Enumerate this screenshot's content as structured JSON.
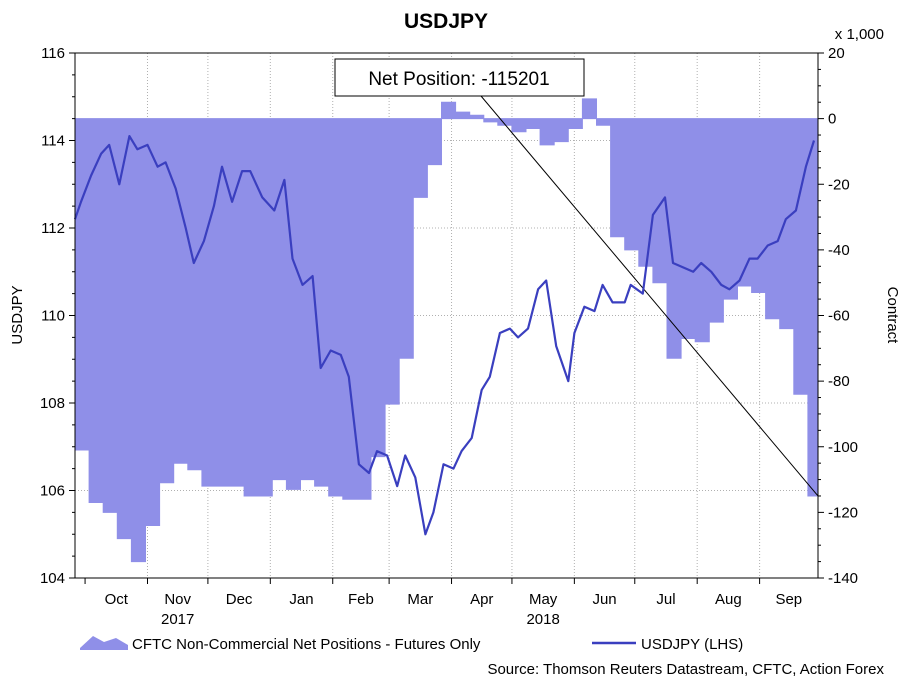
{
  "chart_data": {
    "type": "line+area",
    "title": "USDJPY",
    "left_axis": {
      "label": "USDJPY",
      "ylim": [
        104,
        116
      ],
      "ticks": [
        "104",
        "106",
        "108",
        "110",
        "112",
        "114",
        "116"
      ]
    },
    "right_axis": {
      "label": "Contract",
      "multiplier_label": "x 1,000",
      "ylim": [
        -140,
        20
      ],
      "ticks": [
        "20",
        "0",
        "-20",
        "-40",
        "-60",
        "-80",
        "-100",
        "-120",
        "-140"
      ]
    },
    "x_axis": {
      "months": [
        "Oct",
        "Nov",
        "Dec",
        "Jan",
        "Feb",
        "Mar",
        "Apr",
        "May",
        "Jun",
        "Jul",
        "Aug",
        "Sep"
      ],
      "years": [
        "2017",
        "2018"
      ],
      "range": [
        "2017-09-26",
        "2018-09-30"
      ]
    },
    "grid": true,
    "annotation": "Net Position: -115201",
    "legend_position": "bottom",
    "series": [
      {
        "name": "CFTC Non-Commercial Net Positions - Futures Only",
        "axis": "right",
        "style": "area",
        "color": "#8f8fe8",
        "x": [
          "2017-09-26",
          "2017-10-03",
          "2017-10-10",
          "2017-10-17",
          "2017-10-24",
          "2017-10-31",
          "2017-11-07",
          "2017-11-14",
          "2017-11-21",
          "2017-11-28",
          "2017-12-05",
          "2017-12-12",
          "2017-12-19",
          "2017-12-26",
          "2018-01-02",
          "2018-01-09",
          "2018-01-16",
          "2018-01-23",
          "2018-01-30",
          "2018-02-06",
          "2018-02-13",
          "2018-02-20",
          "2018-02-27",
          "2018-03-06",
          "2018-03-13",
          "2018-03-20",
          "2018-03-27",
          "2018-04-03",
          "2018-04-10",
          "2018-04-17",
          "2018-04-24",
          "2018-05-01",
          "2018-05-08",
          "2018-05-15",
          "2018-05-22",
          "2018-05-29",
          "2018-06-05",
          "2018-06-12",
          "2018-06-19",
          "2018-06-26",
          "2018-07-03",
          "2018-07-10",
          "2018-07-17",
          "2018-07-24",
          "2018-07-31",
          "2018-08-07",
          "2018-08-14",
          "2018-08-21",
          "2018-08-28",
          "2018-09-04",
          "2018-09-11",
          "2018-09-18",
          "2018-09-25"
        ],
        "values": [
          -101,
          -117,
          -120,
          -128,
          -135,
          -124,
          -111,
          -105,
          -107,
          -112,
          -112,
          -112,
          -115,
          -115,
          -110,
          -113,
          -110,
          -112,
          -115,
          -116,
          -116,
          -103,
          -87,
          -73,
          -24,
          -14,
          5,
          2,
          1,
          -1,
          -2,
          -4,
          -3,
          -8,
          -7,
          -3,
          6,
          -2,
          -36,
          -40,
          -45,
          -50,
          -73,
          -67,
          -68,
          -62,
          -55,
          -51,
          -53,
          -61,
          -64,
          -84,
          -115
        ]
      },
      {
        "name": "USDJPY (LHS)",
        "axis": "left",
        "style": "line",
        "color": "#3a3fbf",
        "x": [
          "2017-09-26",
          "2017-09-29",
          "2017-10-04",
          "2017-10-09",
          "2017-10-13",
          "2017-10-18",
          "2017-10-23",
          "2017-10-27",
          "2017-11-01",
          "2017-11-06",
          "2017-11-10",
          "2017-11-15",
          "2017-11-20",
          "2017-11-24",
          "2017-11-29",
          "2017-12-04",
          "2017-12-08",
          "2017-12-13",
          "2017-12-18",
          "2017-12-22",
          "2017-12-28",
          "2018-01-03",
          "2018-01-08",
          "2018-01-12",
          "2018-01-17",
          "2018-01-22",
          "2018-01-26",
          "2018-01-31",
          "2018-02-05",
          "2018-02-09",
          "2018-02-14",
          "2018-02-19",
          "2018-02-23",
          "2018-02-28",
          "2018-03-05",
          "2018-03-09",
          "2018-03-14",
          "2018-03-19",
          "2018-03-23",
          "2018-03-28",
          "2018-04-02",
          "2018-04-06",
          "2018-04-11",
          "2018-04-16",
          "2018-04-20",
          "2018-04-25",
          "2018-04-30",
          "2018-05-04",
          "2018-05-09",
          "2018-05-14",
          "2018-05-18",
          "2018-05-23",
          "2018-05-29",
          "2018-06-01",
          "2018-06-06",
          "2018-06-11",
          "2018-06-15",
          "2018-06-20",
          "2018-06-26",
          "2018-06-29",
          "2018-07-05",
          "2018-07-10",
          "2018-07-16",
          "2018-07-20",
          "2018-07-25",
          "2018-07-30",
          "2018-08-03",
          "2018-08-08",
          "2018-08-13",
          "2018-08-17",
          "2018-08-22",
          "2018-08-27",
          "2018-08-31",
          "2018-09-05",
          "2018-09-10",
          "2018-09-14",
          "2018-09-19",
          "2018-09-24",
          "2018-09-28"
        ],
        "values": [
          112.2,
          112.6,
          113.2,
          113.7,
          113.9,
          113.0,
          114.1,
          113.8,
          113.9,
          113.4,
          113.5,
          112.9,
          112.0,
          111.2,
          111.7,
          112.5,
          113.4,
          112.6,
          113.3,
          113.3,
          112.7,
          112.4,
          113.1,
          111.3,
          110.7,
          110.9,
          108.8,
          109.2,
          109.1,
          108.6,
          106.6,
          106.4,
          106.9,
          106.8,
          106.1,
          106.8,
          106.3,
          105.0,
          105.5,
          106.6,
          106.5,
          106.9,
          107.2,
          108.3,
          108.6,
          109.6,
          109.7,
          109.5,
          109.7,
          110.6,
          110.8,
          109.3,
          108.5,
          109.6,
          110.2,
          110.1,
          110.7,
          110.3,
          110.3,
          110.7,
          110.5,
          112.3,
          112.7,
          111.2,
          111.1,
          111.0,
          111.2,
          111.0,
          110.7,
          110.6,
          110.8,
          111.3,
          111.3,
          111.6,
          111.7,
          112.2,
          112.4,
          113.4,
          114.0
        ]
      }
    ]
  }
}
